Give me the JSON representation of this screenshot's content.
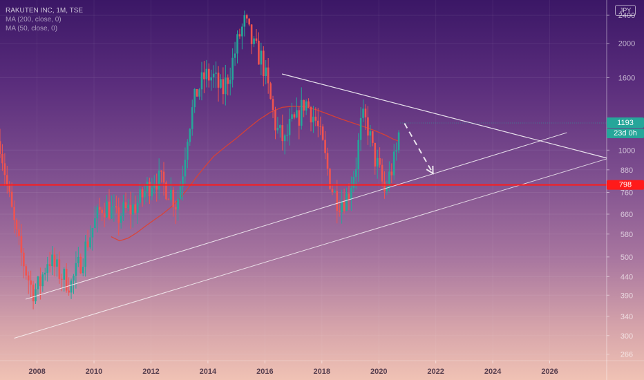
{
  "header": {
    "symbol_line": "RAKUTEN INC, 1M, TSE",
    "ma200": "MA (200, close, 0)",
    "ma50": "MA (50, close, 0)",
    "currency_button": "JPY"
  },
  "badges": {
    "price_label": "1193",
    "countdown_label": "23d 0h",
    "level_label": "798"
  },
  "colors": {
    "up": "#26a69a",
    "down": "#ef5350",
    "ma": "#e0402f",
    "level": "#ff1a1a",
    "trendline": "#ffffff"
  },
  "chart_data": {
    "type": "candlestick",
    "title": "RAKUTEN INC, 1M, TSE",
    "scale": "log",
    "y_range": [
      255,
      2650
    ],
    "x_range": [
      2006.7,
      2028.0
    ],
    "y_ticks": [
      2400,
      2000,
      1600,
      1000,
      880,
      760,
      660,
      580,
      500,
      440,
      390,
      340,
      300,
      266
    ],
    "x_ticks": [
      2008,
      2010,
      2012,
      2014,
      2016,
      2018,
      2020,
      2022,
      2024,
      2026
    ],
    "price_path": [
      [
        2006.7,
        1060
      ],
      [
        2007.0,
        750
      ],
      [
        2007.3,
        560
      ],
      [
        2007.6,
        460
      ],
      [
        2007.8,
        410
      ],
      [
        2007.9,
        400
      ],
      [
        2008.1,
        420
      ],
      [
        2008.4,
        500
      ],
      [
        2008.6,
        470
      ],
      [
        2008.9,
        440
      ],
      [
        2009.2,
        420
      ],
      [
        2009.5,
        480
      ],
      [
        2009.8,
        560
      ],
      [
        2010.0,
        620
      ],
      [
        2010.3,
        700
      ],
      [
        2010.5,
        690
      ],
      [
        2010.8,
        640
      ],
      [
        2011.0,
        670
      ],
      [
        2011.3,
        680
      ],
      [
        2011.6,
        720
      ],
      [
        2011.9,
        790
      ],
      [
        2012.1,
        840
      ],
      [
        2012.3,
        820
      ],
      [
        2012.5,
        790
      ],
      [
        2012.7,
        760
      ],
      [
        2012.9,
        700
      ],
      [
        2013.1,
        860
      ],
      [
        2013.3,
        1150
      ],
      [
        2013.6,
        1450
      ],
      [
        2013.9,
        1620
      ],
      [
        2014.2,
        1600
      ],
      [
        2014.5,
        1450
      ],
      [
        2014.8,
        1700
      ],
      [
        2015.1,
        2100
      ],
      [
        2015.3,
        2300
      ],
      [
        2015.6,
        1950
      ],
      [
        2015.9,
        1800
      ],
      [
        2016.1,
        1500
      ],
      [
        2016.4,
        1150
      ],
      [
        2016.7,
        1050
      ],
      [
        2016.9,
        1180
      ],
      [
        2017.1,
        1200
      ],
      [
        2017.4,
        1380
      ],
      [
        2017.6,
        1300
      ],
      [
        2017.8,
        1200
      ],
      [
        2018.0,
        1050
      ],
      [
        2018.2,
        880
      ],
      [
        2018.4,
        760
      ],
      [
        2018.6,
        720
      ],
      [
        2018.9,
        740
      ],
      [
        2019.2,
        920
      ],
      [
        2019.4,
        1230
      ],
      [
        2019.6,
        1180
      ],
      [
        2019.8,
        980
      ],
      [
        2020.0,
        880
      ],
      [
        2020.2,
        760
      ],
      [
        2020.4,
        860
      ],
      [
        2020.6,
        960
      ],
      [
        2020.75,
        1193
      ]
    ],
    "ma_200": [
      [
        2010.6,
        570
      ],
      [
        2010.9,
        555
      ],
      [
        2011.2,
        565
      ],
      [
        2011.5,
        585
      ],
      [
        2011.8,
        610
      ],
      [
        2012.1,
        635
      ],
      [
        2012.4,
        660
      ],
      [
        2012.7,
        690
      ],
      [
        2013.0,
        730
      ],
      [
        2013.3,
        780
      ],
      [
        2013.6,
        840
      ],
      [
        2013.9,
        900
      ],
      [
        2014.2,
        960
      ],
      [
        2014.6,
        1020
      ],
      [
        2015.0,
        1080
      ],
      [
        2015.4,
        1150
      ],
      [
        2015.8,
        1220
      ],
      [
        2016.2,
        1280
      ],
      [
        2016.6,
        1320
      ],
      [
        2017.0,
        1330
      ],
      [
        2017.4,
        1325
      ],
      [
        2017.8,
        1300
      ],
      [
        2018.2,
        1265
      ],
      [
        2018.6,
        1230
      ],
      [
        2019.0,
        1200
      ],
      [
        2019.4,
        1170
      ],
      [
        2019.8,
        1140
      ],
      [
        2020.2,
        1105
      ],
      [
        2020.5,
        1075
      ],
      [
        2020.7,
        1060
      ]
    ],
    "level_798": 798,
    "triangle_upper": [
      [
        2016.6,
        1640
      ],
      [
        2028.0,
        950
      ]
    ],
    "triangle_lower": [
      [
        2007.6,
        380
      ],
      [
        2026.6,
        1120
      ]
    ],
    "outer_support": [
      [
        2007.2,
        295
      ],
      [
        2028.0,
        945
      ]
    ],
    "projection_arrow": [
      [
        2020.9,
        1190
      ],
      [
        2021.9,
        860
      ]
    ]
  }
}
